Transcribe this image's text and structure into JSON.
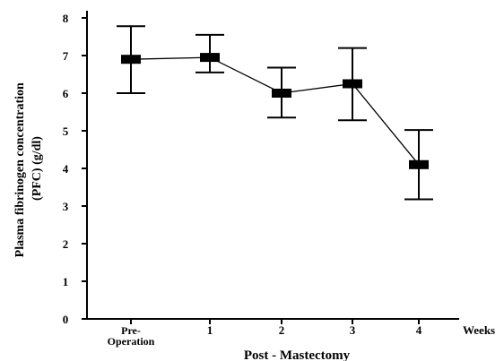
{
  "chart_data": {
    "type": "line",
    "title": "",
    "xlabel": "Post - Mastectomy",
    "ylabel_lines": [
      "Plasma fibrinogen concentration",
      "(PFC) (g/dl)"
    ],
    "x_unit_label": "Weeks",
    "categories": [
      {
        "lines": [
          "Pre-",
          "Operation"
        ]
      },
      {
        "lines": [
          "1"
        ]
      },
      {
        "lines": [
          "2"
        ]
      },
      {
        "lines": [
          "3"
        ]
      },
      {
        "lines": [
          "4"
        ]
      }
    ],
    "series": [
      {
        "values": [
          6.9,
          6.95,
          6.0,
          6.25,
          4.1
        ],
        "err_low": [
          6.0,
          6.55,
          5.35,
          5.28,
          3.18
        ],
        "err_high": [
          7.78,
          7.55,
          6.68,
          7.2,
          5.02
        ]
      }
    ],
    "ylim": [
      0,
      8
    ],
    "yticks": [
      "0",
      "1",
      "2",
      "3",
      "4",
      "5",
      "6",
      "7",
      "8"
    ],
    "grid": false,
    "legend": "none",
    "colors": {
      "line": "#000000",
      "marker": "#000000",
      "axis": "#000000"
    }
  }
}
